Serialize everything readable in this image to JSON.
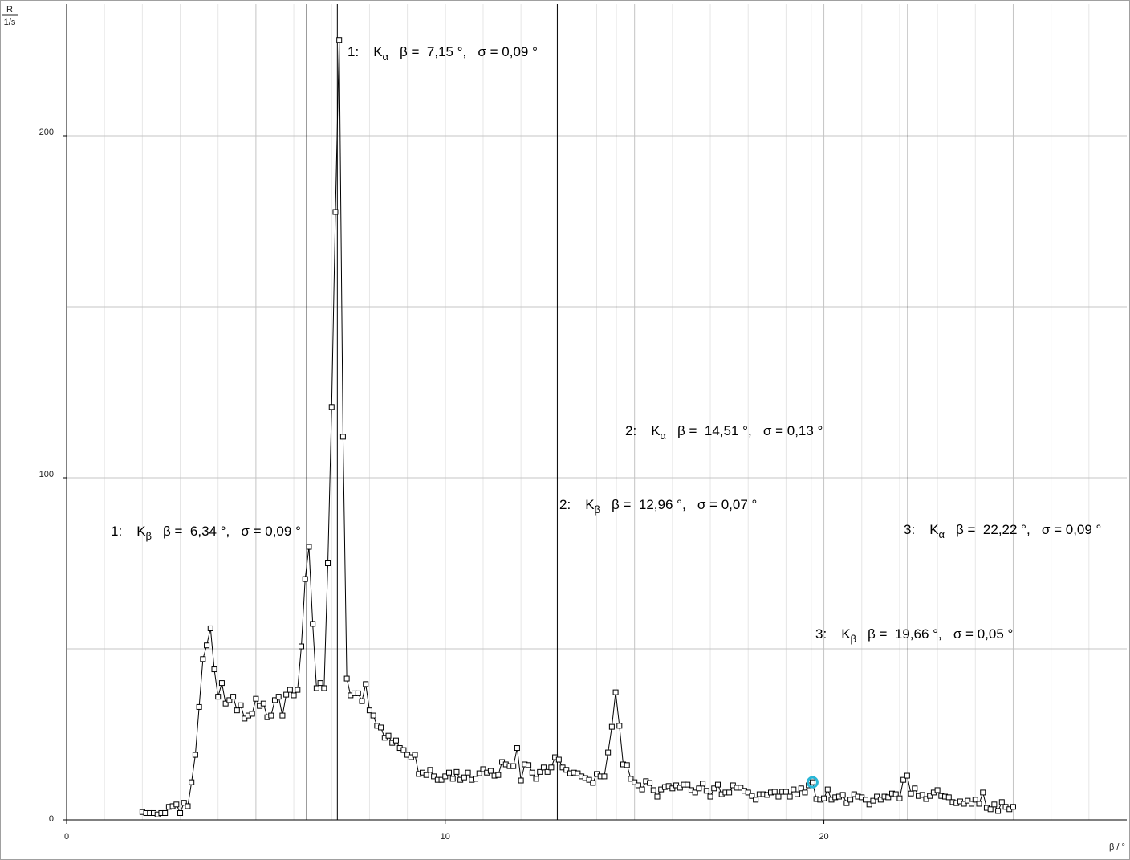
{
  "chart_data": {
    "type": "line",
    "y_label_numerator": "R",
    "y_label_denominator": "1/s",
    "x_label": "β / °",
    "xlim": [
      0,
      28
    ],
    "ylim": [
      0,
      238.5
    ],
    "xticks": [
      0,
      10,
      20
    ],
    "yticks": [
      0,
      100,
      200
    ],
    "x_major_grid": [
      5,
      10,
      15,
      20,
      25
    ],
    "x_minor_grid": [
      1,
      2,
      3,
      4,
      6,
      7,
      8,
      9,
      11,
      12,
      13,
      14,
      16,
      17,
      18,
      19,
      21,
      22,
      23,
      24,
      26,
      27
    ],
    "y_grid": [
      50,
      100,
      150,
      200
    ],
    "grid": true,
    "x": [
      2,
      2.1,
      2.2,
      2.3,
      2.4,
      2.5,
      2.6,
      2.7,
      2.8,
      2.9,
      3,
      3.1,
      3.2,
      3.3,
      3.4,
      3.5,
      3.6,
      3.7,
      3.8,
      3.9,
      4,
      4.1,
      4.2,
      4.3,
      4.4,
      4.5,
      4.6,
      4.7,
      4.8,
      4.9,
      5,
      5.1,
      5.2,
      5.3,
      5.4,
      5.5,
      5.6,
      5.7,
      5.8,
      5.9,
      6,
      6.1,
      6.2,
      6.3,
      6.4,
      6.5,
      6.6,
      6.7,
      6.8,
      6.9,
      7,
      7.1,
      7.2,
      7.3,
      7.4,
      7.5,
      7.6,
      7.7,
      7.8,
      7.9,
      8,
      8.1,
      8.2,
      8.3,
      8.4,
      8.5,
      8.6,
      8.7,
      8.8,
      8.9,
      9,
      9.1,
      9.2,
      9.3,
      9.4,
      9.5,
      9.6,
      9.7,
      9.8,
      9.9,
      10,
      10.1,
      10.2,
      10.3,
      10.4,
      10.5,
      10.6,
      10.7,
      10.8,
      10.9,
      11,
      11.1,
      11.2,
      11.3,
      11.4,
      11.5,
      11.6,
      11.7,
      11.8,
      11.9,
      12,
      12.1,
      12.2,
      12.3,
      12.4,
      12.5,
      12.6,
      12.7,
      12.8,
      12.9,
      13,
      13.1,
      13.2,
      13.3,
      13.4,
      13.5,
      13.6,
      13.7,
      13.8,
      13.9,
      14,
      14.1,
      14.2,
      14.3,
      14.4,
      14.5,
      14.6,
      14.7,
      14.8,
      14.9,
      15,
      15.1,
      15.2,
      15.3,
      15.4,
      15.5,
      15.6,
      15.7,
      15.8,
      15.9,
      16,
      16.1,
      16.2,
      16.3,
      16.4,
      16.5,
      16.6,
      16.7,
      16.8,
      16.9,
      17,
      17.1,
      17.2,
      17.3,
      17.4,
      17.5,
      17.6,
      17.7,
      17.8,
      17.9,
      18,
      18.1,
      18.2,
      18.3,
      18.4,
      18.5,
      18.6,
      18.7,
      18.8,
      18.9,
      19,
      19.1,
      19.2,
      19.3,
      19.4,
      19.5,
      19.6,
      19.7,
      19.8,
      19.9,
      20,
      20.1,
      20.2,
      20.3,
      20.4,
      20.5,
      20.6,
      20.7,
      20.8,
      20.9,
      21,
      21.1,
      21.2,
      21.3,
      21.4,
      21.5,
      21.6,
      21.7,
      21.8,
      21.9,
      22,
      22.1,
      22.2,
      22.3,
      22.4,
      22.5,
      22.6,
      22.7,
      22.8,
      22.9,
      23,
      23.1,
      23.2,
      23.3,
      23.4,
      23.5,
      23.6,
      23.7,
      23.8,
      23.9,
      24,
      24.1,
      24.2,
      24.3,
      24.4,
      24.5,
      24.6,
      24.7,
      24.8,
      24.9,
      25
    ],
    "series": [
      {
        "color": "#000000",
        "values": [
          2.3,
          2,
          2,
          2,
          1.6,
          2,
          2,
          3.8,
          4,
          4.5,
          2,
          5,
          4,
          11,
          19,
          33,
          47,
          51,
          56,
          44,
          36,
          40,
          34,
          35,
          36,
          32,
          33.5,
          29.6,
          30.5,
          31,
          35.4,
          33.3,
          34,
          30,
          30.5,
          35,
          36,
          30.5,
          36.6,
          38,
          36.4,
          38,
          50.7,
          70.4,
          79.8,
          57.3,
          38.5,
          40,
          38.5,
          75,
          120.7,
          177.7,
          228,
          112,
          41.3,
          36.4,
          37,
          37,
          34.7,
          39.7,
          32,
          30.5,
          27.5,
          27,
          24,
          24.6,
          22.5,
          23.2,
          21,
          20.4,
          19,
          18.3,
          19,
          13.4,
          13.8,
          13.1,
          14.6,
          12.7,
          11.7,
          11.7,
          12.7,
          13.8,
          12,
          14,
          11.7,
          12.4,
          13.8,
          11.7,
          12,
          13.6,
          14.8,
          13.8,
          14.3,
          12.9,
          13.1,
          16.9,
          16.2,
          15.7,
          15.7,
          21,
          11.5,
          16.2,
          16,
          13.8,
          12,
          14,
          15.3,
          14,
          15.3,
          18.3,
          17.6,
          15.3,
          14.6,
          13.6,
          13.8,
          13.6,
          12.7,
          12.2,
          11.7,
          10.8,
          13.4,
          12.7,
          12.7,
          19.7,
          27.2,
          37.3,
          27.5,
          16.2,
          16,
          12,
          11,
          10.1,
          8.9,
          11.3,
          10.8,
          8.7,
          6.8,
          8.9,
          9.6,
          9.9,
          9.2,
          10.1,
          9.4,
          10.3,
          10.3,
          8.7,
          8,
          9.2,
          10.6,
          8.5,
          6.8,
          9.2,
          10.3,
          7.5,
          8,
          8,
          10.1,
          9.4,
          9.4,
          8.5,
          8,
          7,
          5.9,
          7.5,
          7.5,
          7.3,
          8,
          8.2,
          6.8,
          8.2,
          8.2,
          6.8,
          8.9,
          7.5,
          9.2,
          8,
          10.1,
          11,
          6.1,
          5.9,
          6.3,
          8.9,
          5.9,
          6.6,
          6.8,
          7.3,
          4.9,
          5.9,
          7.5,
          6.8,
          6.6,
          5.9,
          4.5,
          5.6,
          6.8,
          5.9,
          6.8,
          6.6,
          7.7,
          7.5,
          6.3,
          11.7,
          12.9,
          7.7,
          9.2,
          7,
          7.3,
          6.1,
          7,
          8,
          8.7,
          7,
          6.8,
          6.6,
          5.2,
          4.9,
          5.4,
          4.7,
          5.6,
          4.7,
          5.9,
          4.7,
          8,
          3.5,
          3.1,
          4.5,
          2.6,
          5.2,
          3.8,
          3.1,
          3.8
        ]
      }
    ],
    "selected": {
      "x": 19.7,
      "y": 11,
      "color": "#29b6d6"
    },
    "annotations": [
      {
        "order": "1:",
        "symbol": "K",
        "sub": "β",
        "text": "β =  6,34 °,   σ = 0,09 °",
        "beta": 6.34
      },
      {
        "order": "1:",
        "symbol": "K",
        "sub": "α",
        "text": "β =  7,15 °,   σ = 0,09 °",
        "beta": 7.15
      },
      {
        "order": "2:",
        "symbol": "K",
        "sub": "β",
        "text": "β =  12,96 °,   σ = 0,07 °",
        "beta": 12.96
      },
      {
        "order": "2:",
        "symbol": "K",
        "sub": "α",
        "text": "β =  14,51 °,   σ = 0,13 °",
        "beta": 14.51
      },
      {
        "order": "3:",
        "symbol": "K",
        "sub": "β",
        "text": "β =  19,66 °,   σ = 0,05 °",
        "beta": 19.66
      },
      {
        "order": "3:",
        "symbol": "K",
        "sub": "α",
        "text": "β =  22,22 °,   σ = 0,09 °",
        "beta": 22.22
      }
    ]
  }
}
